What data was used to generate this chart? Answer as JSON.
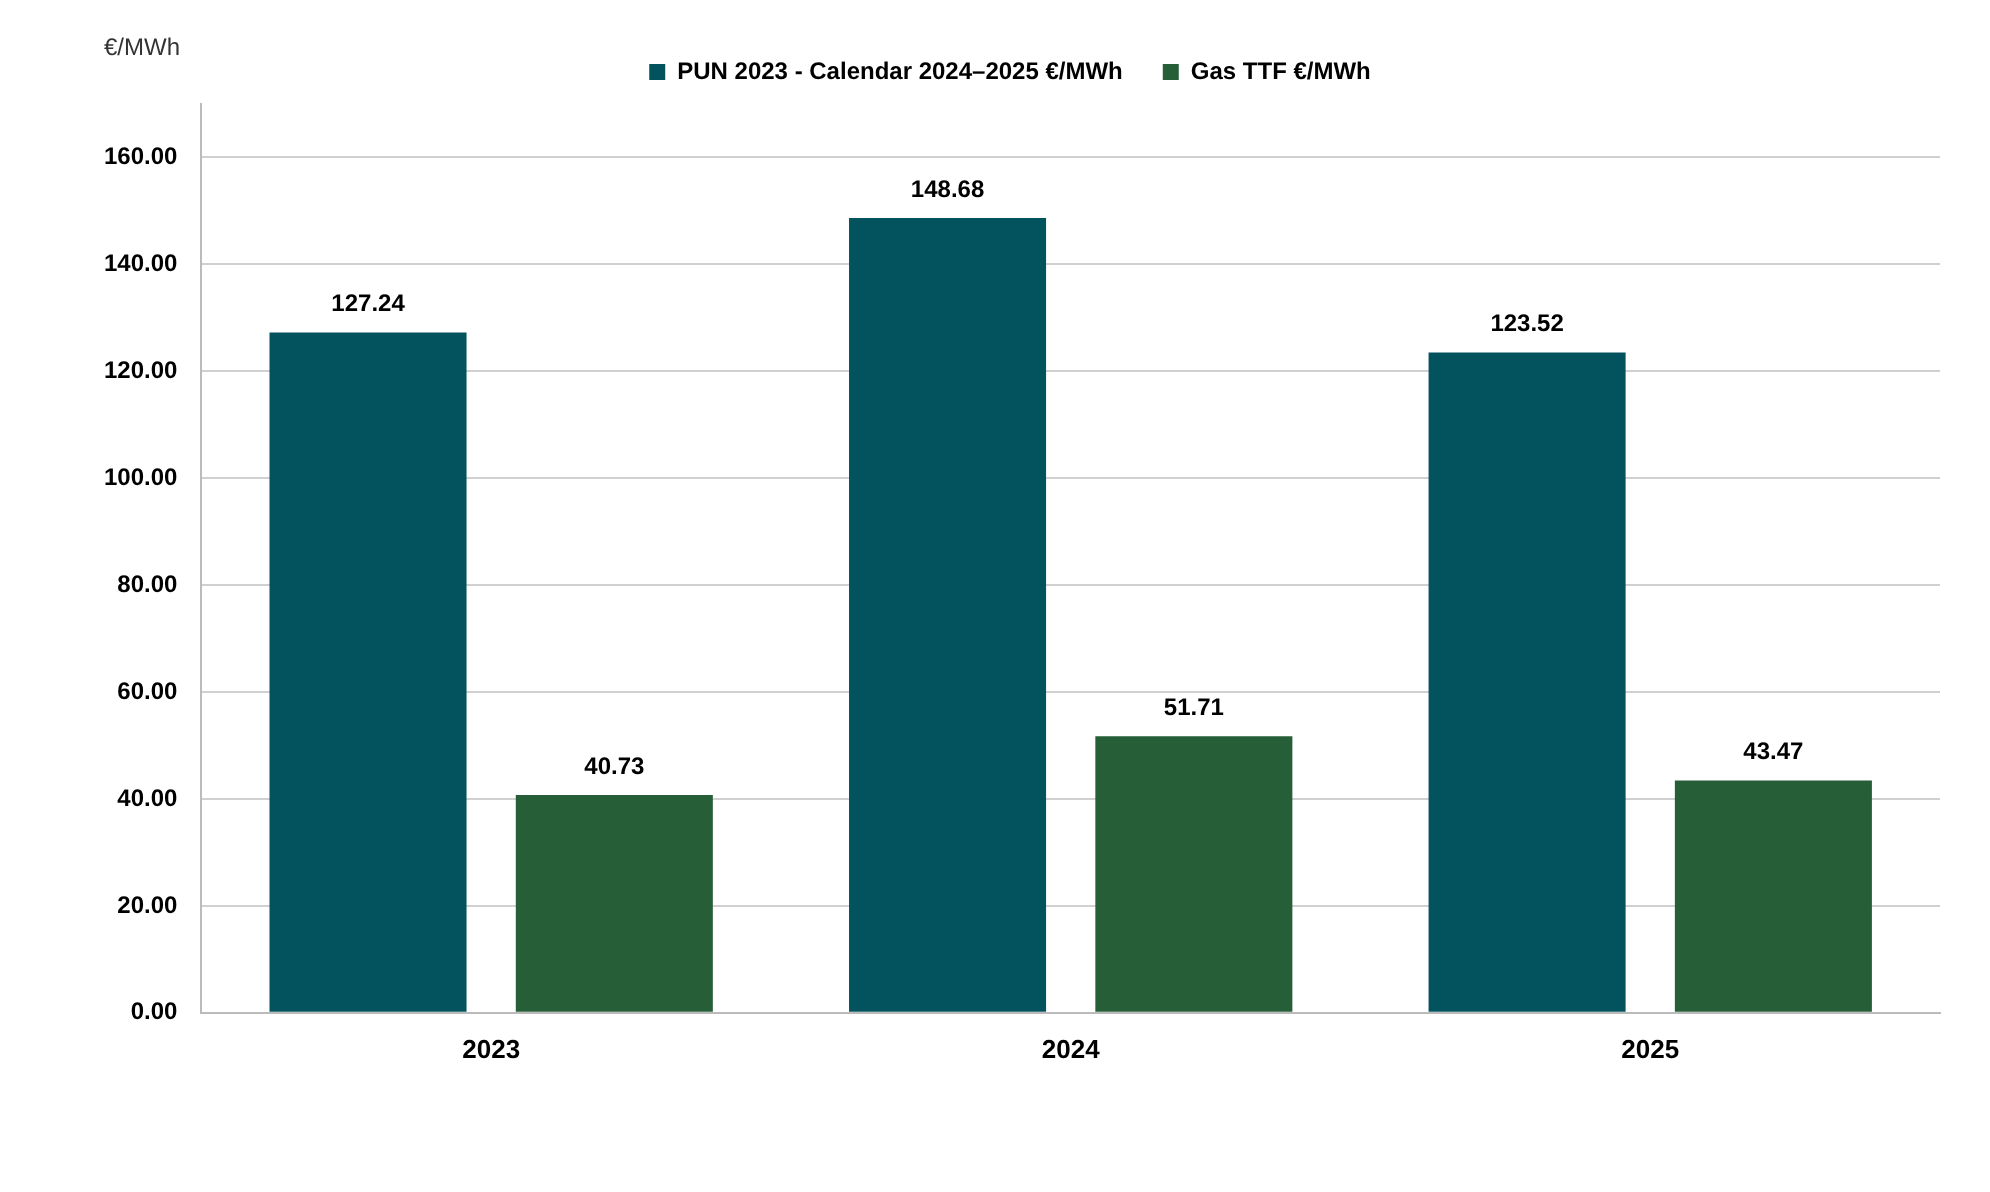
{
  "chart_data": {
    "type": "bar",
    "ylabel": "€/MWh",
    "categories": [
      "2023",
      "2024",
      "2025"
    ],
    "series": [
      {
        "name": "PUN 2023 - Calendar 2024–2025 €/MWh",
        "color": "#02535e",
        "values": [
          127.24,
          148.68,
          123.52
        ]
      },
      {
        "name": "Gas TTF €/MWh",
        "color": "#265e37",
        "values": [
          40.73,
          51.71,
          43.47
        ]
      }
    ],
    "ylim": [
      0,
      170
    ],
    "yticks": [
      {
        "value": 0,
        "label": "0.00"
      },
      {
        "value": 20,
        "label": "20.00"
      },
      {
        "value": 40,
        "label": "40.00"
      },
      {
        "value": 60,
        "label": "60.00"
      },
      {
        "value": 80,
        "label": "80.00"
      },
      {
        "value": 100,
        "label": "100.00"
      },
      {
        "value": 120,
        "label": "120.00"
      },
      {
        "value": 140,
        "label": "140.00"
      },
      {
        "value": 160,
        "label": "160.00"
      }
    ],
    "grid": "y",
    "legend": "top",
    "data_labels": true
  }
}
